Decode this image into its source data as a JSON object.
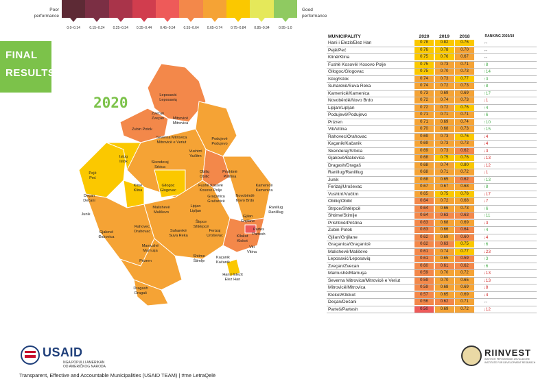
{
  "legend": {
    "poor": "Poor performance",
    "good": "Good performance",
    "bins": [
      {
        "label": "0.0–0.14",
        "color": "#5d2a35"
      },
      {
        "label": "0.15–0.24",
        "color": "#7b2f44"
      },
      {
        "label": "0.25–0.34",
        "color": "#a9344a"
      },
      {
        "label": "0.35–0.44",
        "color": "#d13d4e"
      },
      {
        "label": "0.45–0.54",
        "color": "#ee5a59"
      },
      {
        "label": "0.55–0.64",
        "color": "#f3884a"
      },
      {
        "label": "0.65–0.74",
        "color": "#f5a335"
      },
      {
        "label": "0.75–0.84",
        "color": "#fbc800"
      },
      {
        "label": "0.85–0.94",
        "color": "#e5e85a"
      },
      {
        "label": "0.95–1.0",
        "color": "#8fca61"
      }
    ]
  },
  "heading": {
    "final": "FINAL RESULTS",
    "year": "2020"
  },
  "table": {
    "headers": {
      "municipality": "MUNICIPALITY",
      "y2020": "2020",
      "y2019": "2019",
      "y2018": "2018",
      "ranking": "RANKING 2020/19"
    },
    "rows": [
      {
        "name": "Hani i Elezit/Elez Han",
        "v20": "0.78",
        "v19": "0.82",
        "v18": "0.76",
        "rank": "↔",
        "dir": "eq"
      },
      {
        "name": "Pejë/Peć",
        "v20": "0.76",
        "v19": "0.78",
        "v18": "0.70",
        "rank": "↔",
        "dir": "eq"
      },
      {
        "name": "Klinë/Klina",
        "v20": "0.75",
        "v19": "0.76",
        "v18": "0.67",
        "rank": "↔",
        "dir": "eq"
      },
      {
        "name": "Fushë Kosovë/ Kosovo Polje",
        "v20": "0.75",
        "v19": "0.73",
        "v18": "0.71",
        "rank": "↑8",
        "dir": "up"
      },
      {
        "name": "Gllogoc/Glogovac",
        "v20": "0.75",
        "v19": "0.70",
        "v18": "0.73",
        "rank": "↑14",
        "dir": "up"
      },
      {
        "name": "Istog/Istok",
        "v20": "0.74",
        "v19": "0.73",
        "v18": "0.77",
        "rank": "↑3",
        "dir": "up"
      },
      {
        "name": "Suharekë/Suva Reka",
        "v20": "0.74",
        "v19": "0.72",
        "v18": "0.73",
        "rank": "↑8",
        "dir": "up"
      },
      {
        "name": "Kamenicë/Kamenica",
        "v20": "0.73",
        "v19": "0.69",
        "v18": "0.69",
        "rank": "↑17",
        "dir": "up"
      },
      {
        "name": "Novobërdë/Novo Brdo",
        "v20": "0.72",
        "v19": "0.74",
        "v18": "0.73",
        "rank": "↓1",
        "dir": "dn"
      },
      {
        "name": "Lipjan/Lipljan",
        "v20": "0.72",
        "v19": "0.72",
        "v18": "0.76",
        "rank": "↑4",
        "dir": "up"
      },
      {
        "name": "Podujevë/Podujevo",
        "v20": "0.71",
        "v19": "0.71",
        "v18": "0.71",
        "rank": "↑6",
        "dir": "up"
      },
      {
        "name": "Prizren",
        "v20": "0.71",
        "v19": "0.69",
        "v18": "0.74",
        "rank": "↑10",
        "dir": "up"
      },
      {
        "name": "Viti/Vitina",
        "v20": "0.70",
        "v19": "0.68",
        "v18": "0.73",
        "rank": "↑15",
        "dir": "up"
      },
      {
        "name": "Rahovec/Orahovac",
        "v20": "0.69",
        "v19": "0.73",
        "v18": "0.76",
        "rank": "↓4",
        "dir": "dn"
      },
      {
        "name": "Kaçanik/Kačanik",
        "v20": "0.69",
        "v19": "0.73",
        "v18": "0.73",
        "rank": "↓4",
        "dir": "dn"
      },
      {
        "name": "Skenderaj/Srbica",
        "v20": "0.69",
        "v19": "0.73",
        "v18": "0.62",
        "rank": "↓3",
        "dir": "dn"
      },
      {
        "name": "Gjakovë/Đakovica",
        "v20": "0.68",
        "v19": "0.75",
        "v18": "0.76",
        "rank": "↓13",
        "dir": "dn"
      },
      {
        "name": "Dragash/Dragaš",
        "v20": "0.68",
        "v19": "0.74",
        "v18": "0.80",
        "rank": "↓12",
        "dir": "dn"
      },
      {
        "name": "Ranillug/Ranilllug",
        "v20": "0.68",
        "v19": "0.71",
        "v18": "0.72",
        "rank": "↓1",
        "dir": "dn"
      },
      {
        "name": "Junik",
        "v20": "0.68",
        "v19": "0.65",
        "v18": "0.62",
        "rank": "↑13",
        "dir": "up"
      },
      {
        "name": "Ferizaj/Uroševac",
        "v20": "0.67",
        "v19": "0.67",
        "v18": "0.68",
        "rank": "↑8",
        "dir": "up"
      },
      {
        "name": "Vushtrri/Vučitrn",
        "v20": "0.65",
        "v19": "0.75",
        "v18": "0.76",
        "rank": "↓17",
        "dir": "dn"
      },
      {
        "name": "Obiliq/Obilić",
        "v20": "0.64",
        "v19": "0.72",
        "v18": "0.68",
        "rank": "↓7",
        "dir": "dn"
      },
      {
        "name": "Štrpce/Shtërpcë",
        "v20": "0.64",
        "v19": "0.66",
        "v18": "0.73",
        "rank": "↑6",
        "dir": "up"
      },
      {
        "name": "Shtime/Štimlje",
        "v20": "0.64",
        "v19": "0.63",
        "v18": "0.63",
        "rank": "↑11",
        "dir": "up"
      },
      {
        "name": "Prishtinë/Priština",
        "v20": "0.63",
        "v19": "0.68",
        "v18": "0.69",
        "rank": "↓3",
        "dir": "dn"
      },
      {
        "name": "Zubin Potok",
        "v20": "0.63",
        "v19": "0.66",
        "v18": "0.64",
        "rank": "↑4",
        "dir": "up"
      },
      {
        "name": "Gjilan/Gnjilane",
        "v20": "0.62",
        "v19": "0.69",
        "v18": "0.60",
        "rank": "↓4",
        "dir": "dn"
      },
      {
        "name": "Graçanica/Graçanicë",
        "v20": "0.62",
        "v19": "0.63",
        "v18": "0.75",
        "rank": "↑6",
        "dir": "up"
      },
      {
        "name": "Malishevë/Mališevo",
        "v20": "0.61",
        "v19": "0.74",
        "v18": "0.77",
        "rank": "↓23",
        "dir": "dn"
      },
      {
        "name": "Leposaviċ/Leposaviq",
        "v20": "0.61",
        "v19": "0.65",
        "v18": "0.59",
        "rank": "↑3",
        "dir": "up"
      },
      {
        "name": "Zveçan/Zvecan",
        "v20": "0.60",
        "v19": "0.61",
        "v18": "0.62",
        "rank": "↑6",
        "dir": "up"
      },
      {
        "name": "Mamushë/Mamuşa",
        "v20": "0.59",
        "v19": "0.70",
        "v18": "0.72",
        "rank": "↓13",
        "dir": "dn"
      },
      {
        "name": "Severna Mitrovica/Mitrovicë e Veriut",
        "v20": "0.59",
        "v19": "0.70",
        "v18": "0.65",
        "rank": "↓13",
        "dir": "dn"
      },
      {
        "name": "Mitrovicë/Mitrovica",
        "v20": "0.59",
        "v19": "0.68",
        "v18": "0.69",
        "rank": "↓8",
        "dir": "dn"
      },
      {
        "name": "Klokot/Kllokot",
        "v20": "0.57",
        "v19": "0.65",
        "v18": "0.69",
        "rank": "↓4",
        "dir": "dn"
      },
      {
        "name": "Deçan/Dečani",
        "v20": "0.56",
        "v19": "0.62",
        "v18": "0.71",
        "rank": "↔",
        "dir": "eq"
      },
      {
        "name": "Parteš/Partesh",
        "v20": "0.50",
        "v19": "0.69",
        "v18": "0.72",
        "rank": "↓12",
        "dir": "dn"
      }
    ]
  },
  "map": {
    "labels": [
      {
        "text": "Leposaviċ\nLeposaviq"
      },
      {
        "text": "Zvečan\nZveçan"
      },
      {
        "text": "Mitrovicë\nMitrovica"
      },
      {
        "text": "Zubin Potok"
      },
      {
        "text": "Severna Mitrovica\nMitrovicë e Veriut"
      },
      {
        "text": "Podujevë\nPodujevo"
      },
      {
        "text": "Vushtrri\nVučitrn"
      },
      {
        "text": "Istog\nIstok"
      },
      {
        "text": "Skenderaj\nSrbica"
      },
      {
        "text": "Obiliq\nObilić"
      },
      {
        "text": "Prishtinë\nPriština"
      },
      {
        "text": "Pejë\nPeć"
      },
      {
        "text": "Klinë\nKlina"
      },
      {
        "text": "Gllogoc\nGlogovac"
      },
      {
        "text": "Fushë Kosovë\nKosovo Polje"
      },
      {
        "text": "Graçanica\nGračanicë"
      },
      {
        "text": "Kamenicë\nKamenica"
      },
      {
        "text": "Deçan\nDečani"
      },
      {
        "text": "Lipjan\nLipljan"
      },
      {
        "text": "Novobërdë\nNovo Brdo"
      },
      {
        "text": "Junik"
      },
      {
        "text": "Malishevë\nMališevo"
      },
      {
        "text": "Ranillug\nRanilllug"
      },
      {
        "text": "Štrpce\nShtërpcë"
      },
      {
        "text": "Ferizaj\nUroševac"
      },
      {
        "text": "Gjilan\nGnjilane"
      },
      {
        "text": "Partes\nPartesh"
      },
      {
        "text": "Gjakovë\nĐakovica"
      },
      {
        "text": "Rahovec\nOrahovac"
      },
      {
        "text": "Suharekë\nSuva Reka"
      },
      {
        "text": "Kllokot\nKlokot"
      },
      {
        "text": "Mamushë\nMamuşa"
      },
      {
        "text": "Viti\nVitina"
      },
      {
        "text": "Shtime\nŠtimlje"
      },
      {
        "text": "Kaçanik\nKačanik"
      },
      {
        "text": "Prizren"
      },
      {
        "text": "Hani i Elezit\nElez Han"
      },
      {
        "text": "Dragash\nDragaš"
      }
    ]
  },
  "usaid": {
    "title": "USAID",
    "sub": "NGA POPULLI AMERIKAN\nOD AMERIČKOG NARODA"
  },
  "riinvest": {
    "title": "RIINVEST",
    "sub": "INSTITUTI PËR KËRKIME ZHVILLIMORE\nINSTITUTE FOR DEVELOPMENT RESEARCH"
  },
  "footer": "Transparent, Effective and Accountable Municipalities (USAID TEAM)  | #me LetraQelë"
}
